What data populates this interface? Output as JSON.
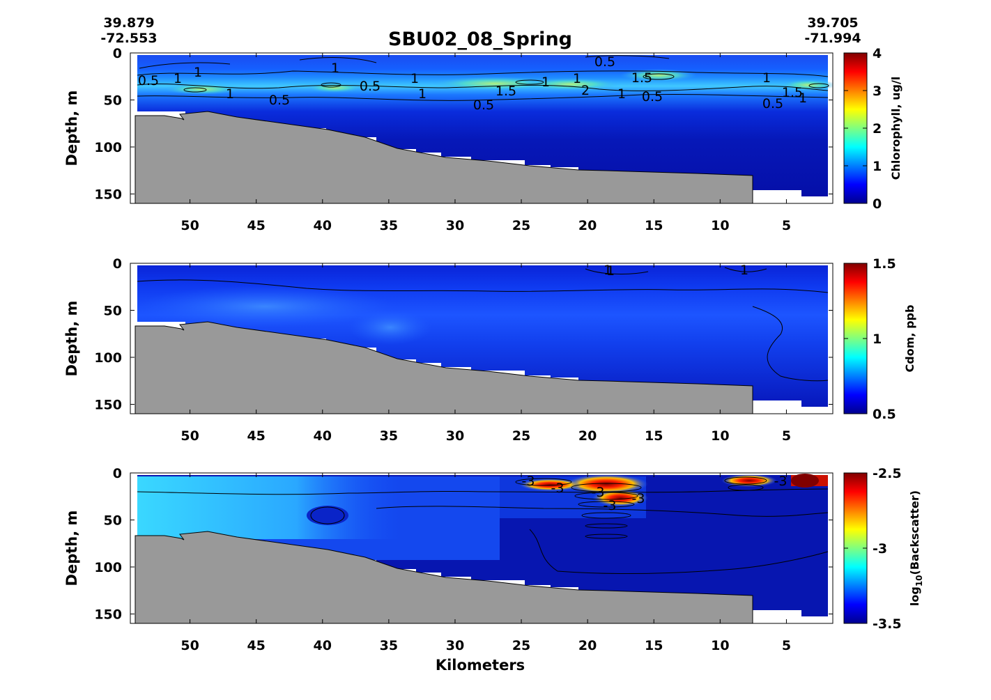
{
  "figure": {
    "title": "SBU02_08_Spring",
    "start_lat": "39.879",
    "start_lon": "-72.553",
    "end_lat": "39.705",
    "end_lon": "-71.994",
    "xlabel": "Kilometers"
  },
  "chart_data": [
    {
      "type": "heatmap",
      "variable": "chlorophyll",
      "ylabel": "Depth, m",
      "colorbar_label": "Chlorophyll, ug/l",
      "xlim": [
        54.5,
        1.5
      ],
      "ylim": [
        0,
        160
      ],
      "y_reversed": true,
      "x_ticks": [
        "50",
        "45",
        "40",
        "35",
        "30",
        "25",
        "20",
        "15",
        "10",
        "5"
      ],
      "y_ticks": [
        "0",
        "50",
        "100",
        "150"
      ],
      "colorbar_range": [
        0,
        4
      ],
      "colorbar_ticks": [
        "0",
        "1",
        "2",
        "3",
        "4"
      ],
      "colormap": "jet",
      "contour_labels": [
        "0.5",
        "1",
        "1",
        "0.5",
        "1",
        "1",
        "0.5",
        "1",
        "1",
        "0.5",
        "1.5",
        "1",
        "1",
        "2",
        "1",
        "1.5",
        "0.5",
        "0.5",
        "1",
        "1.5",
        "1",
        "0.5"
      ],
      "profile_depth_m": [
        {
          "km": 52,
          "depth": 63
        },
        {
          "km": 47,
          "depth": 63
        },
        {
          "km": 40,
          "depth": 80
        },
        {
          "km": 35,
          "depth": 92
        },
        {
          "km": 33,
          "depth": 102
        },
        {
          "km": 30,
          "depth": 106
        },
        {
          "km": 24,
          "depth": 115
        },
        {
          "km": 20,
          "depth": 123
        },
        {
          "km": 10,
          "depth": 129
        },
        {
          "km": 7.5,
          "depth": 144
        },
        {
          "km": 4,
          "depth": 152
        },
        {
          "km": 2,
          "depth": 152
        }
      ],
      "value_notes": "Subsurface chlorophyll maximum ~1.5-2 ug/l at 30-40 m depth; background ~0.3-0.5 ug/l below 60 m"
    },
    {
      "type": "heatmap",
      "variable": "cdom",
      "ylabel": "Depth, m",
      "colorbar_label": "Cdom, ppb",
      "xlim": [
        54.5,
        1.5
      ],
      "ylim": [
        0,
        160
      ],
      "y_reversed": true,
      "x_ticks": [
        "50",
        "45",
        "40",
        "35",
        "30",
        "25",
        "20",
        "15",
        "10",
        "5"
      ],
      "y_ticks": [
        "0",
        "50",
        "100",
        "150"
      ],
      "colorbar_range": [
        0.5,
        1.5
      ],
      "colorbar_ticks": [
        "0.5",
        "1",
        "1.5"
      ],
      "colormap": "jet",
      "contour_labels": [
        "1",
        "1",
        "1"
      ],
      "value_notes": "Mostly 0.6-0.75 ppb, slightly higher (~0.75) near 30-70 m in the western section"
    },
    {
      "type": "heatmap",
      "variable": "backscatter",
      "ylabel": "Depth, m",
      "colorbar_label": "log10(Backscatter)",
      "colorbar_label_main": "log",
      "colorbar_label_sub": "10",
      "colorbar_label_rest": "(Backscatter)",
      "xlim": [
        54.5,
        1.5
      ],
      "ylim": [
        0,
        160
      ],
      "y_reversed": true,
      "x_ticks": [
        "50",
        "45",
        "40",
        "35",
        "30",
        "25",
        "20",
        "15",
        "10",
        "5"
      ],
      "y_ticks": [
        "0",
        "50",
        "100",
        "150"
      ],
      "colorbar_range": [
        -3.5,
        -2.5
      ],
      "colorbar_ticks": [
        "-2.5",
        "-3",
        "-3.5"
      ],
      "colormap": "jet",
      "contour_labels": [
        "-3",
        "-3",
        "-3",
        "-3",
        "-3",
        "-3"
      ],
      "value_notes": "Elevated backscatter (~-3.2) in upper 60 m west of km 35; high values near surface around km 15-20 and km 2-10"
    }
  ]
}
